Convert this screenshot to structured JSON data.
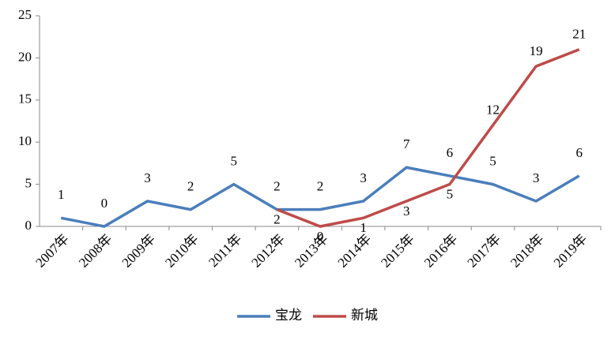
{
  "chart_data": {
    "type": "line",
    "categories": [
      "2007年",
      "2008年",
      "2009年",
      "2010年",
      "2011年",
      "2012年",
      "2013年",
      "2014年",
      "2015年",
      "2016年",
      "2017年",
      "2018年",
      "2019年"
    ],
    "series": [
      {
        "name": "宝龙",
        "color": "#4a7ebb",
        "values": [
          1,
          0,
          3,
          2,
          5,
          2,
          2,
          3,
          7,
          6,
          5,
          3,
          6
        ]
      },
      {
        "name": "新城",
        "color": "#be4b48",
        "values": [
          null,
          null,
          null,
          null,
          null,
          2,
          0,
          1,
          3,
          5,
          12,
          19,
          21
        ]
      }
    ],
    "ylim": [
      0,
      25
    ],
    "yticks": [
      0,
      5,
      10,
      15,
      20,
      25
    ],
    "grid": false,
    "legend": "bottom"
  }
}
